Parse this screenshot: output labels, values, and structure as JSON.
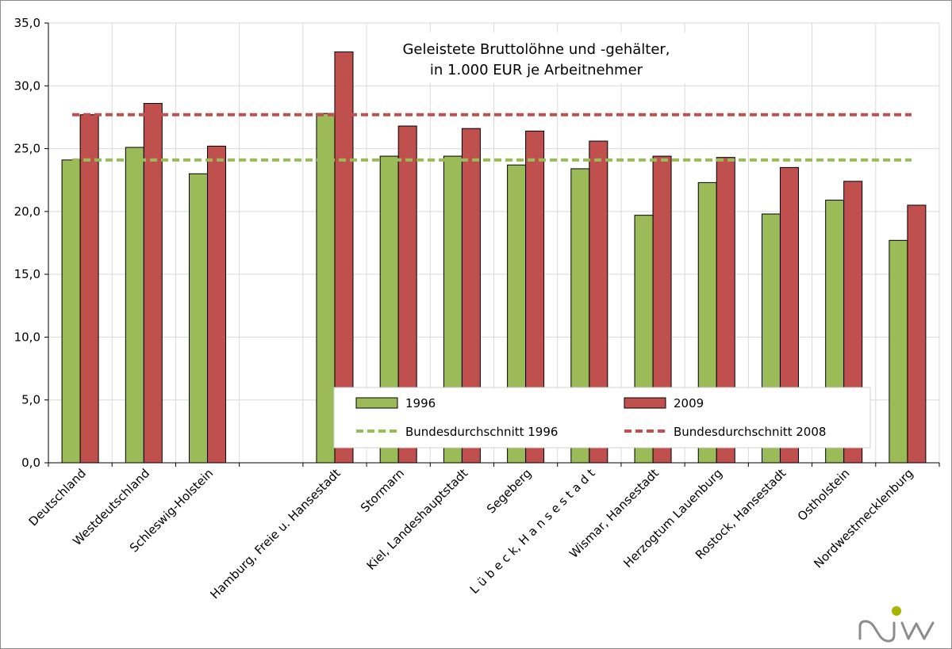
{
  "chart_data": {
    "type": "bar",
    "title": [
      "Geleistete Bruttolöhne und -gehälter,",
      "in 1.000 EUR je Arbeitnehmer"
    ],
    "categories": [
      "Deutschland",
      "Westdeutschland",
      "Schleswig-Holstein",
      "",
      "Hamburg,  Freie u. Hansestadt",
      "Stormarn",
      "Kiel, Landeshauptstadt",
      "Segeberg",
      "L ü b e c k, H a n s e s t a d t",
      "Wismar, Hansestadt",
      "Herzogtum  Lauenburg",
      "Rostock, Hansestadt",
      "Ostholstein",
      "Nordwestmecklenburg"
    ],
    "series": [
      {
        "name": "1996",
        "color": "#9bbb59",
        "values": [
          24.1,
          25.1,
          23.0,
          null,
          27.8,
          24.4,
          24.4,
          23.7,
          23.4,
          19.7,
          22.3,
          19.8,
          20.9,
          17.7
        ]
      },
      {
        "name": "2009",
        "color": "#c0504d",
        "values": [
          27.7,
          28.6,
          25.2,
          null,
          32.7,
          26.8,
          26.6,
          26.4,
          25.6,
          24.4,
          24.3,
          23.5,
          22.4,
          20.5
        ]
      }
    ],
    "reference_lines": [
      {
        "name": "Bundesdurchschnitt 1996",
        "value": 24.1,
        "color": "#9bbb59"
      },
      {
        "name": "Bundesdurchschnitt 2008",
        "value": 27.7,
        "color": "#c0504d"
      }
    ],
    "ylim": [
      0,
      35
    ],
    "yticks": [
      "0,0",
      "5,0",
      "10,0",
      "15,0",
      "20,0",
      "25,0",
      "30,0",
      "35,0"
    ],
    "grid": true,
    "legend": {
      "position": "bottom-right inside plot",
      "items": [
        "1996",
        "2009",
        "Bundesdurchschnitt 1996",
        "Bundesdurchschnitt 2008"
      ]
    }
  },
  "logo": {
    "text": "niw",
    "colors": [
      "#8c8c8c",
      "#a8b400"
    ]
  }
}
